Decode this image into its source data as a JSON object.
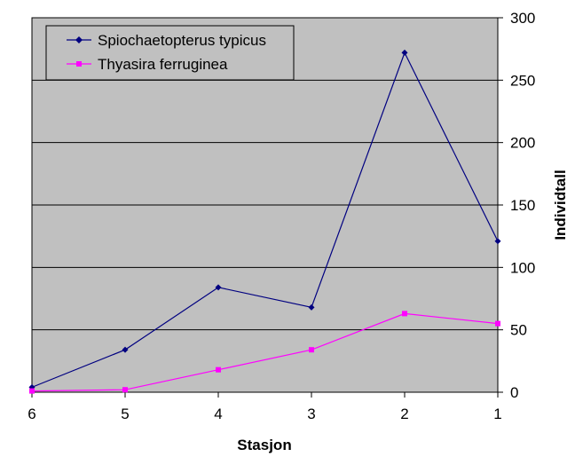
{
  "chart_data": {
    "type": "line",
    "categories": [
      "6",
      "5",
      "4",
      "3",
      "2",
      "1"
    ],
    "xlabel": "Stasjon",
    "ylabel": "Individtall",
    "ylim": [
      0,
      300
    ],
    "yticks": [
      "0",
      "50",
      "100",
      "150",
      "200",
      "250",
      "300"
    ],
    "y_axis_side": "right",
    "grid": true,
    "legend_position": "top-left",
    "series": [
      {
        "name": "Spiochaetopterus typicus",
        "values": [
          4,
          34,
          84,
          68,
          272,
          121
        ],
        "color": "#000080",
        "marker": "diamond"
      },
      {
        "name": "Thyasira ferruginea",
        "values": [
          1,
          2,
          18,
          34,
          63,
          55
        ],
        "color": "#ff00ff",
        "marker": "square"
      }
    ],
    "plot_background": "#c0c0c0"
  }
}
